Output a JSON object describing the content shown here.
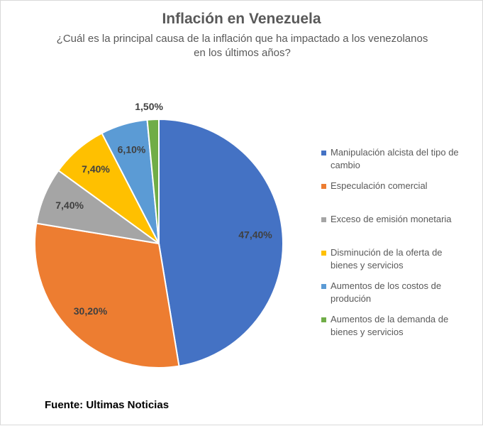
{
  "chart_data": {
    "type": "pie",
    "title": "Inflación en Venezuela",
    "subtitle_lines": [
      "¿Cuál es la principal causa de la inflación que ha impactado a los venezolanos",
      "en los últimos años?"
    ],
    "start_angle_deg": 0,
    "direction": "clockwise",
    "legend_position": "right",
    "slices": [
      {
        "legend_lines": [
          "Manipulación alcista del tipo de",
          "cambio"
        ],
        "value": 47.4,
        "label": "47,40%",
        "color": "#4472c4"
      },
      {
        "legend_lines": [
          "Especulación comercial"
        ],
        "value": 30.2,
        "label": "30,20%",
        "color": "#ed7d31"
      },
      {
        "legend_lines": [
          "Exceso de emisión monetaria"
        ],
        "value": 7.4,
        "label": "7,40%",
        "color": "#a5a5a5"
      },
      {
        "legend_lines": [
          "Disminución de la oferta de",
          "bienes y servicios"
        ],
        "value": 7.4,
        "label": "7,40%",
        "color": "#ffc000"
      },
      {
        "legend_lines": [
          "Aumentos de los costos de",
          "produción"
        ],
        "value": 6.1,
        "label": "6,10%",
        "color": "#5b9bd5"
      },
      {
        "legend_lines": [
          "Aumentos de la demanda de",
          "bienes y servicios"
        ],
        "value": 1.5,
        "label": "1,50%",
        "color": "#70ad47"
      }
    ]
  },
  "source": "Fuente: Ultimas Noticias"
}
